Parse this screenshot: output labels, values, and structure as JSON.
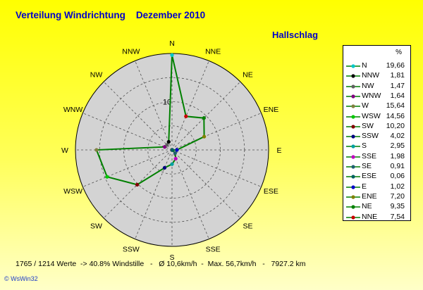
{
  "header": {
    "title": "Verteilung Windrichtung    Dezember 2010",
    "station": "Hallschlag"
  },
  "footer": {
    "stats": "1765 / 1214 Werte  -> 40.8% Windstille   -   Ø 10,6km/h  -  Max. 56,7km/h   -   7927.2 km",
    "credit": "© WsWin32"
  },
  "colors": {
    "series_line": "#008000",
    "disc_fill": "#d3d3d3",
    "disc_border": "#000000",
    "grid": "#505050",
    "compass_label": "#000000"
  },
  "legend": {
    "unit": "%"
  },
  "chart_data": {
    "type": "radar",
    "rmax": 20,
    "ring_label": "10",
    "grid": true,
    "legend_position": "right",
    "directions": [
      "N",
      "NNE",
      "NE",
      "ENE",
      "E",
      "ESE",
      "SE",
      "SSE",
      "S",
      "SSW",
      "SW",
      "WSW",
      "W",
      "WNW",
      "NW",
      "NNW"
    ],
    "values": [
      19.66,
      7.54,
      9.35,
      7.2,
      1.02,
      0.06,
      0.91,
      1.98,
      2.95,
      4.02,
      10.2,
      14.56,
      15.64,
      1.64,
      1.47,
      1.81
    ],
    "point_colors": [
      "#00c8c8",
      "#c80000",
      "#008000",
      "#808000",
      "#0000c8",
      "#006060",
      "#206070",
      "#c000c0",
      "#00a0a0",
      "#000080",
      "#800000",
      "#00c800",
      "#808040",
      "#800080",
      "#606060",
      "#000000"
    ],
    "legend_entries": [
      {
        "label": "N",
        "value": "19,66",
        "color": "#00c8c8"
      },
      {
        "label": "NNW",
        "value": "1,81",
        "color": "#000000"
      },
      {
        "label": "NW",
        "value": "1,47",
        "color": "#606060"
      },
      {
        "label": "WNW",
        "value": "1,64",
        "color": "#800080"
      },
      {
        "label": "W",
        "value": "15,64",
        "color": "#808040"
      },
      {
        "label": "WSW",
        "value": "14,56",
        "color": "#00c800"
      },
      {
        "label": "SW",
        "value": "10,20",
        "color": "#800000"
      },
      {
        "label": "SSW",
        "value": "4,02",
        "color": "#000080"
      },
      {
        "label": "S",
        "value": "2,95",
        "color": "#00a0a0"
      },
      {
        "label": "SSE",
        "value": "1,98",
        "color": "#c000c0"
      },
      {
        "label": "SE",
        "value": "0,91",
        "color": "#206070"
      },
      {
        "label": "ESE",
        "value": "0,06",
        "color": "#006060"
      },
      {
        "label": "E",
        "value": "1,02",
        "color": "#0000c8"
      },
      {
        "label": "ENE",
        "value": "7,20",
        "color": "#808000"
      },
      {
        "label": "NE",
        "value": "9,35",
        "color": "#008000"
      },
      {
        "label": "NNE",
        "value": "7,54",
        "color": "#c80000"
      }
    ]
  }
}
